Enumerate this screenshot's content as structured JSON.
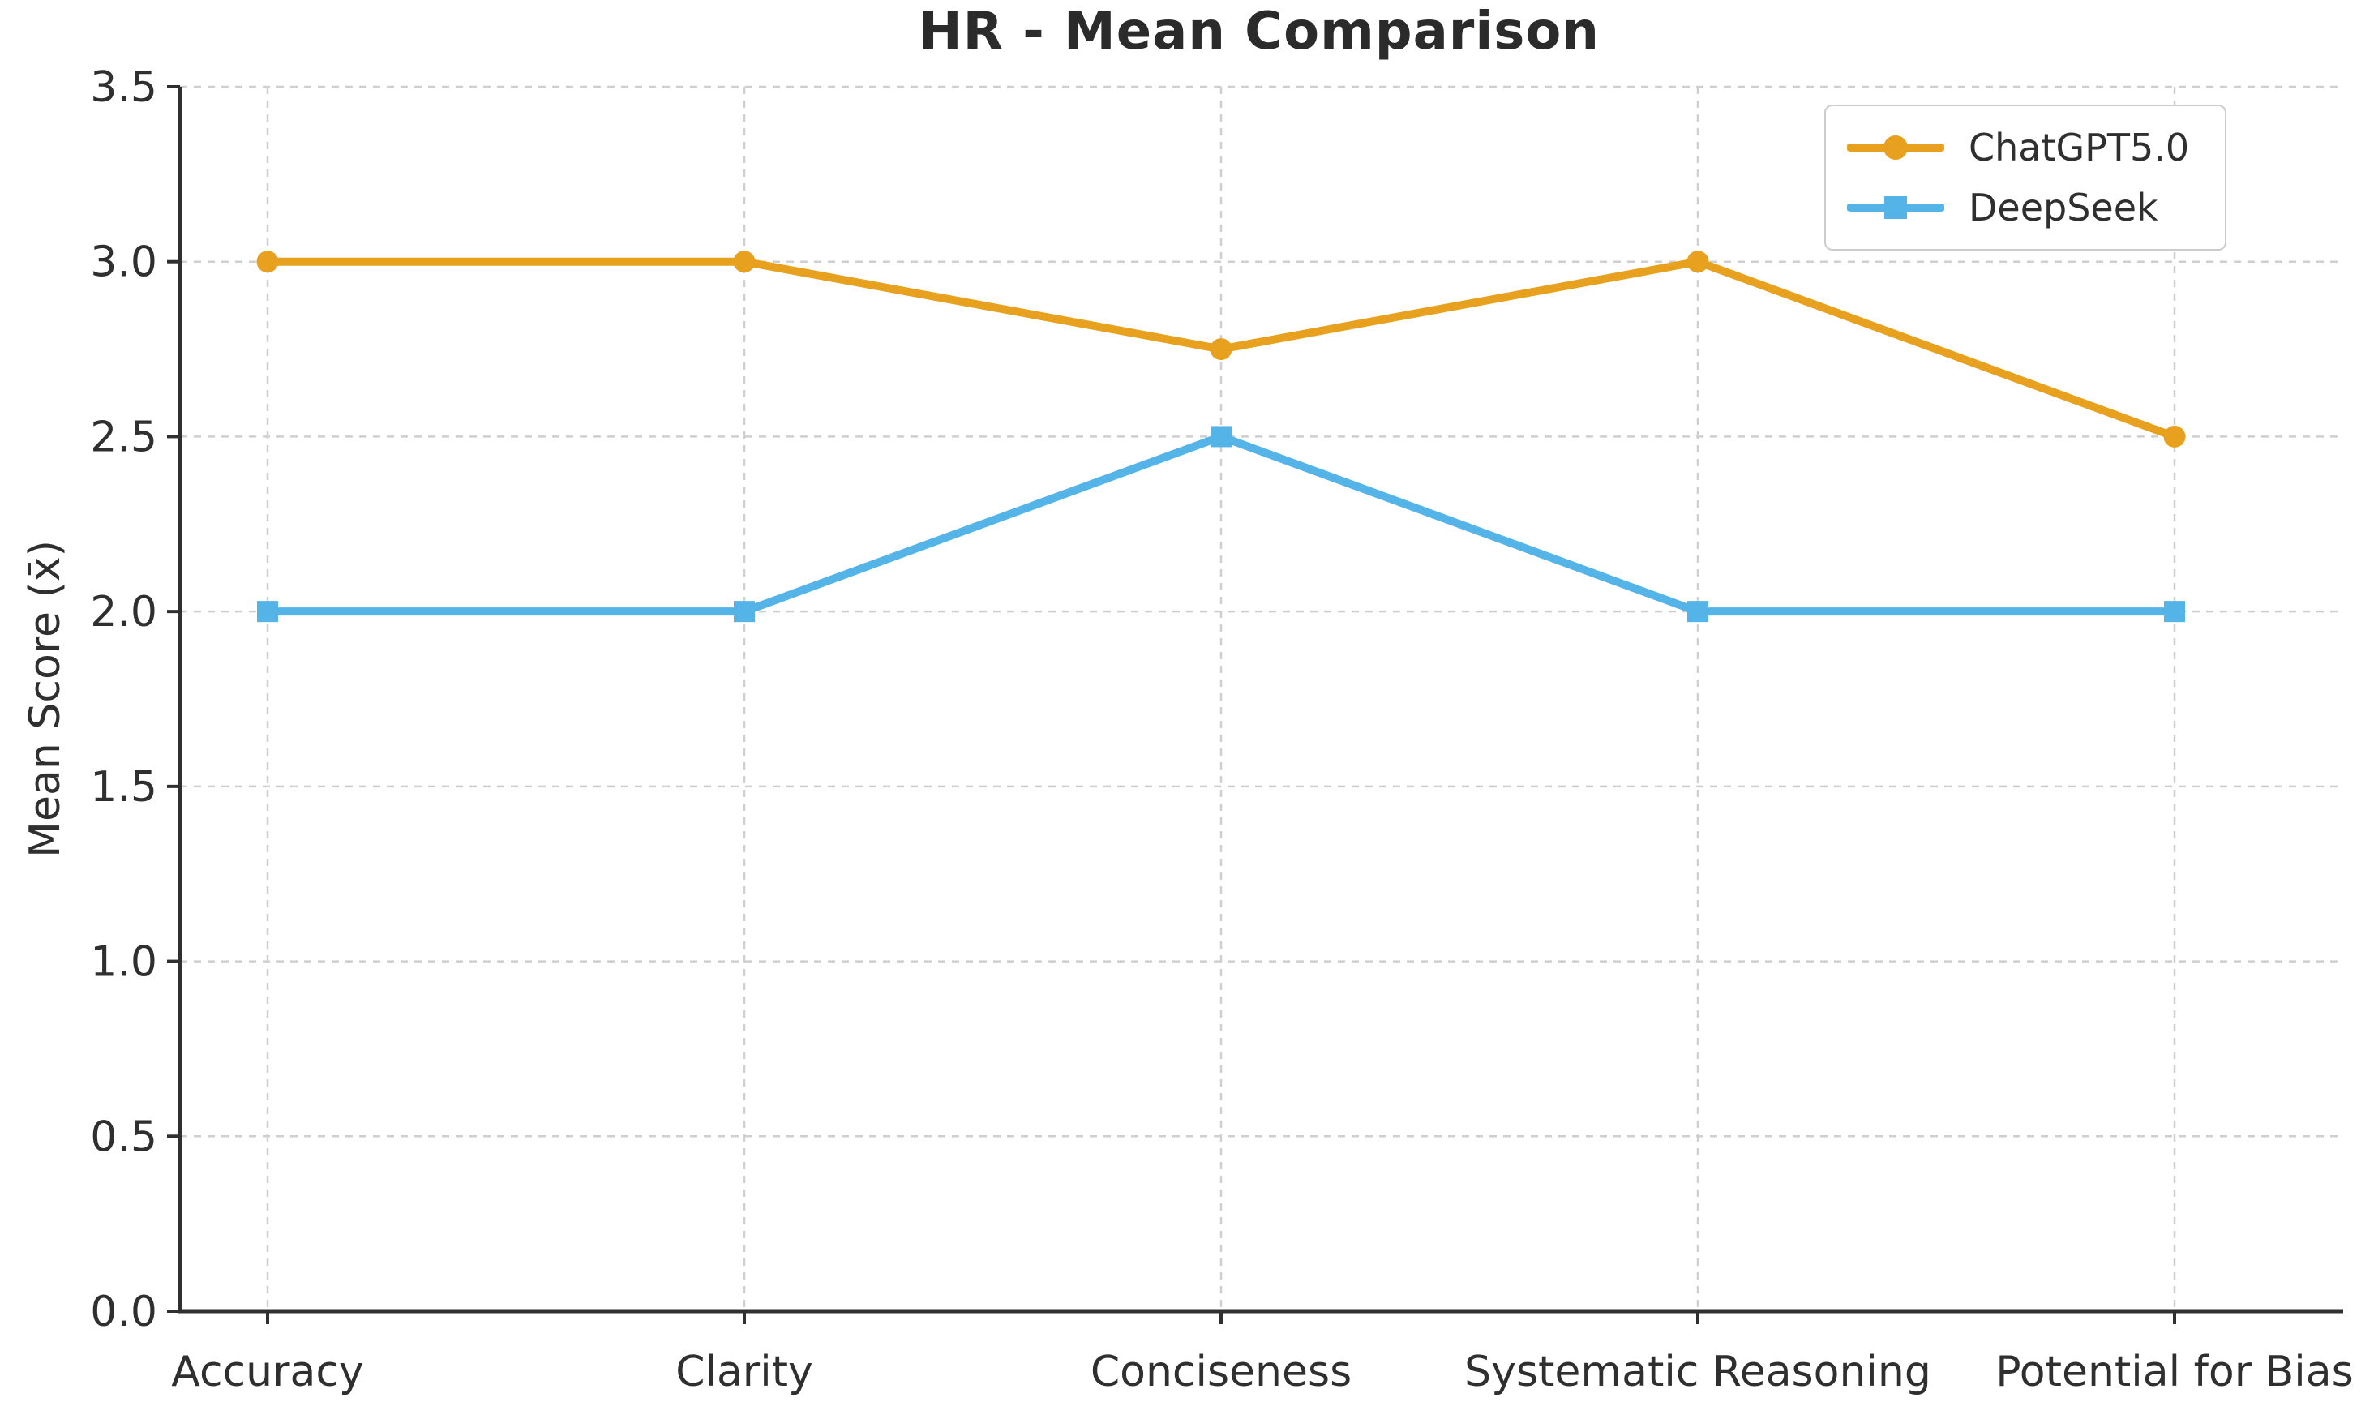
{
  "chart_data": {
    "type": "line",
    "title": "HR - Mean Comparison",
    "xlabel": "",
    "ylabel": "Mean Score (x̄)",
    "categories": [
      "Accuracy",
      "Clarity",
      "Conciseness",
      "Systematic Reasoning",
      "Potential for Bias"
    ],
    "series": [
      {
        "name": "ChatGPT5.0",
        "color": "#E7A11E",
        "marker": "circle",
        "values": [
          3.0,
          3.0,
          2.75,
          3.0,
          2.5
        ]
      },
      {
        "name": "DeepSeek",
        "color": "#54B3E7",
        "marker": "square",
        "values": [
          2.0,
          2.0,
          2.5,
          2.0,
          2.0
        ]
      }
    ],
    "ylim": [
      0.0,
      3.5
    ],
    "ytick_labels": [
      "0.0",
      "0.5",
      "1.0",
      "1.5",
      "2.0",
      "2.5",
      "3.0",
      "3.5"
    ],
    "yticks": [
      0.0,
      0.5,
      1.0,
      1.5,
      2.0,
      2.5,
      3.0,
      3.5
    ],
    "grid": true,
    "grid_style": "dashed",
    "grid_color": "#cfcfcf",
    "axis_color": "#303030",
    "text_color": "#2f2f2f",
    "legend_position": "upper right"
  }
}
